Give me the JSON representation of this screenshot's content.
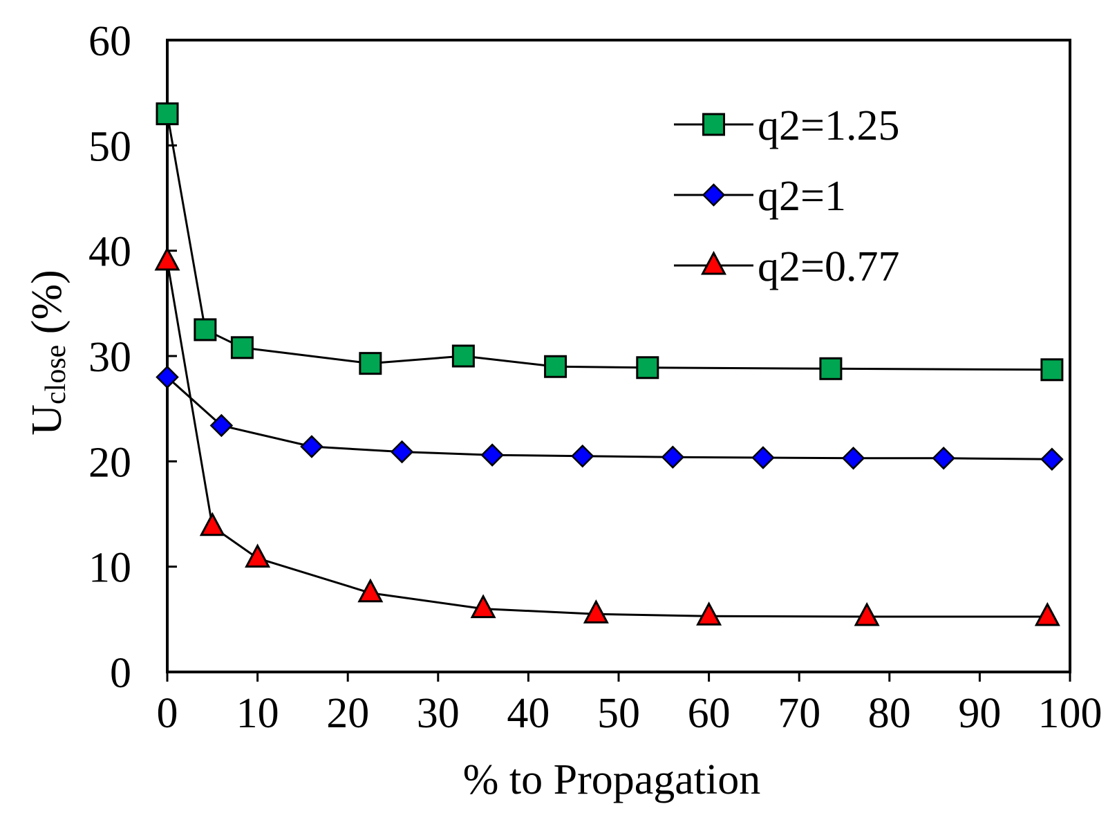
{
  "chart_data": {
    "type": "line",
    "title": "",
    "xlabel": "% to Propagation",
    "ylabel_main": "U",
    "ylabel_sub": "close",
    "ylabel_tail": " (%)",
    "xlim": [
      0,
      100
    ],
    "ylim": [
      0,
      60
    ],
    "xticks": [
      0,
      10,
      20,
      30,
      40,
      50,
      60,
      70,
      80,
      90,
      100
    ],
    "yticks": [
      0,
      10,
      20,
      30,
      40,
      50,
      60
    ],
    "grid": false,
    "legend_position": "top-right",
    "series": [
      {
        "name": "q2=1.25",
        "marker": "square",
        "color": "#00a651",
        "x": [
          0,
          4.2,
          8.3,
          22.5,
          32.8,
          43.0,
          53.2,
          73.5,
          98.0
        ],
        "y": [
          53.0,
          32.5,
          30.8,
          29.3,
          30.0,
          29.0,
          28.9,
          28.8,
          28.7
        ]
      },
      {
        "name": "q2=1",
        "marker": "diamond",
        "color": "#0000ff",
        "x": [
          0,
          6.0,
          16.0,
          26.0,
          36.0,
          46.0,
          56.0,
          66.0,
          76.0,
          86.0,
          98.0
        ],
        "y": [
          28.0,
          23.4,
          21.4,
          20.9,
          20.6,
          20.5,
          20.4,
          20.35,
          20.3,
          20.3,
          20.2
        ]
      },
      {
        "name": "q2=0.77",
        "marker": "triangle",
        "color": "#ff0000",
        "x": [
          0,
          5.0,
          10.0,
          22.5,
          35.0,
          47.5,
          60.0,
          77.5,
          97.5
        ],
        "y": [
          39.0,
          13.8,
          10.8,
          7.5,
          6.0,
          5.5,
          5.3,
          5.25,
          5.25
        ]
      }
    ]
  }
}
